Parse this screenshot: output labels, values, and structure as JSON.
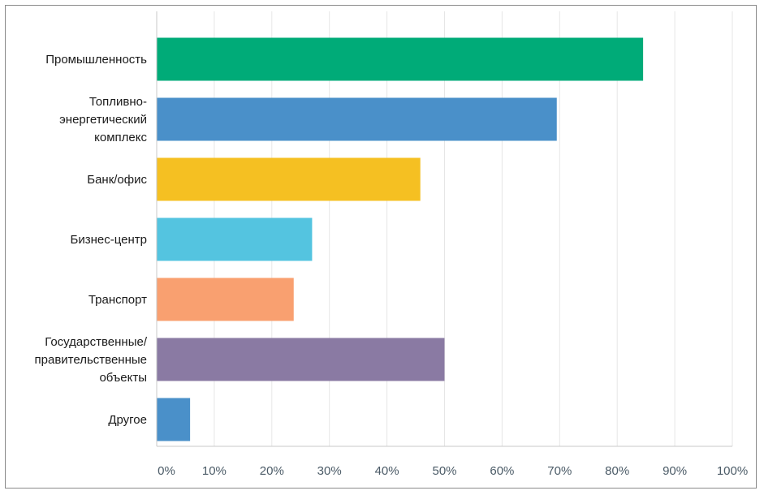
{
  "chart_data": {
    "type": "bar",
    "orientation": "horizontal",
    "categories": [
      [
        "Промышленность"
      ],
      [
        "Топливно-",
        "энергетический",
        "комплекс"
      ],
      [
        "Банк/офис"
      ],
      [
        "Бизнес-центр"
      ],
      [
        "Транспорт"
      ],
      [
        "Государственные/",
        "правительственные",
        "объекты"
      ],
      [
        "Другое"
      ]
    ],
    "values": [
      84.5,
      69.5,
      45.8,
      27.0,
      23.8,
      50.0,
      5.8
    ],
    "colors": [
      "#00ab78",
      "#4a90c9",
      "#f5c022",
      "#54c4e0",
      "#f9a070",
      "#8a7aa3",
      "#4a90c9"
    ],
    "xlim": [
      0,
      100
    ],
    "xticks": [
      "0%",
      "10%",
      "20%",
      "30%",
      "40%",
      "50%",
      "60%",
      "70%",
      "80%",
      "90%",
      "100%"
    ],
    "grid": true,
    "title": "",
    "xlabel": "",
    "ylabel": ""
  }
}
